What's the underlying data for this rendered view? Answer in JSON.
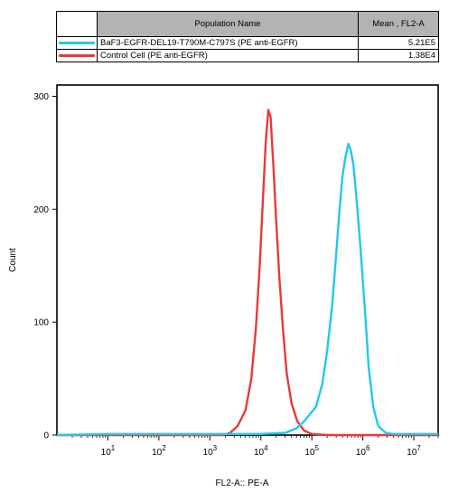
{
  "legend": {
    "headers": {
      "name": "Population Name",
      "mean": "Mean , FL2-A"
    },
    "rows": [
      {
        "color": "#22c8ec",
        "name": "BaF3-EGFR-DEL19-T790M-C797S (PE anti-EGFR)",
        "mean": "5.21E5"
      },
      {
        "color": "#e63a3a",
        "name": "Control Cell  (PE anti-EGFR)",
        "mean": "1.38E4"
      }
    ]
  },
  "chart_data": {
    "type": "line",
    "xlabel": "FL2-A:: PE-A",
    "ylabel": "Count",
    "x_scale": "log",
    "xlim": [
      1,
      30000000
    ],
    "ylim": [
      0,
      310
    ],
    "y_ticks": [
      0,
      100,
      200,
      300
    ],
    "x_ticks": [
      {
        "base": "10",
        "exp": "1",
        "value": 10
      },
      {
        "base": "10",
        "exp": "2",
        "value": 100
      },
      {
        "base": "10",
        "exp": "3",
        "value": 1000
      },
      {
        "base": "10",
        "exp": "4",
        "value": 10000
      },
      {
        "base": "10",
        "exp": "5",
        "value": 100000
      },
      {
        "base": "10",
        "exp": "6",
        "value": 1000000
      },
      {
        "base": "10",
        "exp": "7",
        "value": 10000000
      }
    ],
    "grid": false,
    "legend_position": "top",
    "series": [
      {
        "name": "Control Cell  (PE anti-EGFR)",
        "color": "#e63a3a",
        "points": [
          [
            1,
            0
          ],
          [
            1800,
            0
          ],
          [
            2500,
            2
          ],
          [
            3500,
            8
          ],
          [
            5000,
            22
          ],
          [
            6500,
            50
          ],
          [
            8000,
            95
          ],
          [
            9500,
            150
          ],
          [
            11000,
            210
          ],
          [
            12500,
            260
          ],
          [
            14000,
            288
          ],
          [
            15500,
            282
          ],
          [
            17500,
            240
          ],
          [
            20000,
            190
          ],
          [
            23000,
            140
          ],
          [
            27000,
            95
          ],
          [
            32000,
            55
          ],
          [
            40000,
            28
          ],
          [
            52000,
            12
          ],
          [
            70000,
            4
          ],
          [
            100000,
            1
          ],
          [
            200000,
            0
          ],
          [
            30000000,
            0
          ]
        ]
      },
      {
        "name": "BaF3-EGFR-DEL19-T790M-C797S (PE anti-EGFR)",
        "color": "#22c8ec",
        "points": [
          [
            1,
            0
          ],
          [
            10,
            1
          ],
          [
            1000,
            1
          ],
          [
            10000,
            1
          ],
          [
            30000,
            2
          ],
          [
            50000,
            6
          ],
          [
            70000,
            12
          ],
          [
            90000,
            18
          ],
          [
            120000,
            25
          ],
          [
            160000,
            45
          ],
          [
            200000,
            75
          ],
          [
            250000,
            115
          ],
          [
            300000,
            160
          ],
          [
            350000,
            200
          ],
          [
            400000,
            230
          ],
          [
            450000,
            245
          ],
          [
            520000,
            258
          ],
          [
            580000,
            252
          ],
          [
            650000,
            240
          ],
          [
            750000,
            210
          ],
          [
            900000,
            165
          ],
          [
            1100000,
            110
          ],
          [
            1300000,
            60
          ],
          [
            1600000,
            25
          ],
          [
            2000000,
            8
          ],
          [
            2800000,
            2
          ],
          [
            4000000,
            1
          ],
          [
            30000000,
            1
          ]
        ]
      }
    ]
  }
}
